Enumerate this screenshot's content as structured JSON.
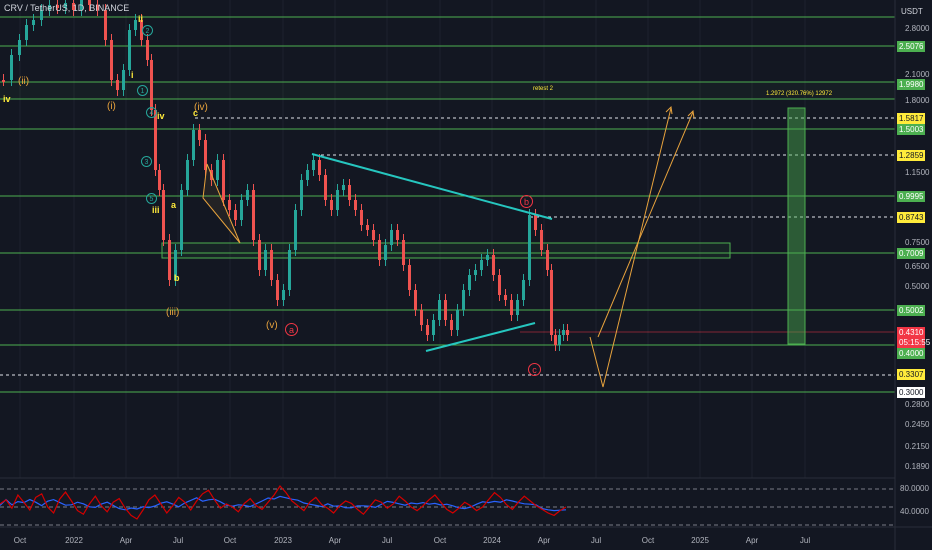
{
  "header": {
    "title": "CRV / TetherUS, 1D, BINANCE",
    "currency": "USDT"
  },
  "price_axis": {
    "ticks": [
      "2.8000",
      "2.1000",
      "1.8000",
      "1.1500",
      "0.7500",
      "0.6500",
      "0.5000",
      "0.2800",
      "0.2450",
      "0.2150",
      "0.1890"
    ]
  },
  "price_labels": [
    {
      "value": "2.5076",
      "style": "green"
    },
    {
      "value": "1.9980",
      "style": "green"
    },
    {
      "value": "1.5817",
      "style": "yellow"
    },
    {
      "value": "1.5003",
      "style": "green"
    },
    {
      "value": "1.2859",
      "style": "yellow"
    },
    {
      "value": "0.9995",
      "style": "green"
    },
    {
      "value": "0.8743",
      "style": "yellow"
    },
    {
      "value": "0.7009",
      "style": "green"
    },
    {
      "value": "0.5002",
      "style": "green"
    },
    {
      "value": "0.4310",
      "value2": "05:15:55",
      "style": "red"
    },
    {
      "value": "0.4000",
      "style": "green"
    },
    {
      "value": "0.3307",
      "style": "yellow"
    },
    {
      "value": "0.3000",
      "style": "white"
    }
  ],
  "rsi_axis": {
    "ticks": [
      "80.0000",
      "40.0000"
    ],
    "levels": [
      80,
      50,
      20
    ],
    "values": [
      55,
      62,
      48,
      70,
      58,
      45,
      66,
      72,
      50,
      40,
      63,
      75,
      60,
      44,
      38,
      55,
      68,
      52,
      42,
      58,
      64,
      48,
      36,
      30,
      45,
      62,
      70,
      55,
      40,
      52,
      66,
      58,
      45,
      60,
      72,
      78,
      62,
      48,
      55,
      50,
      42,
      56,
      64,
      52,
      46,
      58,
      70,
      85,
      74,
      60,
      52,
      44,
      58,
      66,
      54,
      48,
      40,
      52,
      60,
      56,
      46,
      38,
      50,
      62,
      58,
      48,
      55,
      68,
      60,
      50,
      44,
      52,
      62,
      70,
      58,
      46,
      40,
      48,
      58,
      52,
      44,
      50,
      62,
      74,
      66,
      54,
      46,
      58,
      68,
      60,
      52,
      46,
      40,
      36,
      44,
      50
    ]
  },
  "time_axis": {
    "labels": [
      "Oct",
      "2022",
      "Apr",
      "Jul",
      "Oct",
      "2023",
      "Apr",
      "Jul",
      "Oct",
      "2024",
      "Apr",
      "Jul",
      "Oct",
      "2025",
      "Apr",
      "Jul"
    ]
  },
  "annotations": {
    "retest": "retest 2",
    "measure": "1.2972 (320.76%) 12972"
  },
  "wave_labels": {
    "roman_ii": "(ii)",
    "roman_i": "(i)",
    "roman_iv_left": "iv",
    "ii_top": "ii",
    "i_small": "i",
    "iv_small": "iv",
    "iii_small": "iii",
    "c_small": "c",
    "a_small": "a",
    "b_small": "b",
    "paren_iv": "(iv)",
    "paren_iii": "(iii)",
    "paren_v": "(v)",
    "circ_1": "1",
    "circ_2": "2",
    "circ_3": "3",
    "circ_4": "4",
    "circ_5": "5",
    "circ_a": "a",
    "circ_b": "b",
    "circ_c": "c"
  },
  "colors": {
    "background": "#131722",
    "support_line": "#4caf50",
    "target_line": "#ffeb3b",
    "trendline": "#26c6bf",
    "projection": "#e8a33d",
    "candle_up": "#26a69a",
    "candle_down": "#ef5350",
    "rsi_red": "#d50000",
    "rsi_blue": "#2962ff"
  }
}
